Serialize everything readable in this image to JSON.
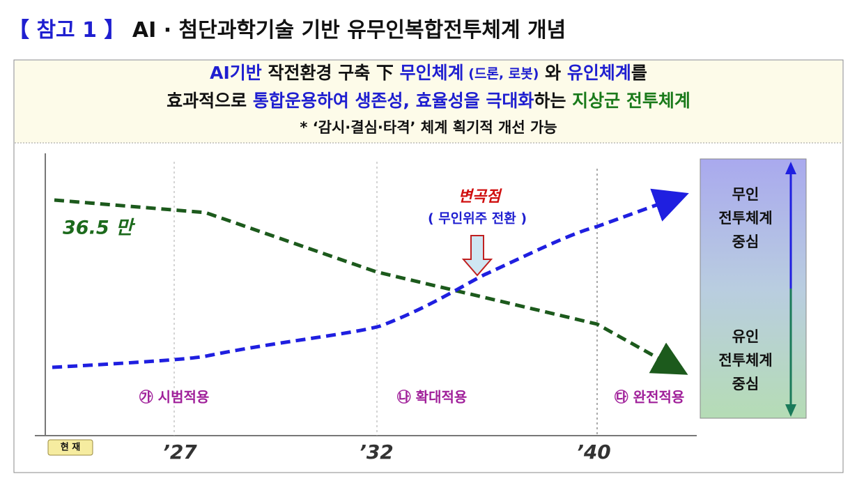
{
  "header": {
    "title_parts": [
      "【 참고 1 】",
      " AI · 첨단과학기술 기반 유무인복합전투체계 개념"
    ]
  },
  "summary": {
    "line1": [
      "AI기반",
      " 작전환경 구축 下 ",
      "무인체계",
      " (드론, 로봇)",
      " 와 ",
      "유인체계",
      "를"
    ],
    "line2": [
      "효과적으로 ",
      "통합운용하여 생존성, 효율성을 극대화",
      "하는 ",
      "지상군 전투체계"
    ],
    "line3": "*  ‘감시·결심·타격’ 체계 획기적 개선 가능"
  },
  "diagram": {
    "start_label": "36.5 만",
    "inflection": "변곡점",
    "inflection_note": "( 무인위주 전환 )",
    "phases": [
      "㉮ 시범적용",
      "㉯ 확대적용",
      "㉰ 완전적용"
    ],
    "timeline": [
      "현 재",
      "’27",
      "’32",
      "’40"
    ],
    "unmanned_focus": [
      "무인",
      "전투체계",
      "중심"
    ],
    "manned_focus": [
      "유인",
      "전투체계",
      "중심"
    ]
  }
}
